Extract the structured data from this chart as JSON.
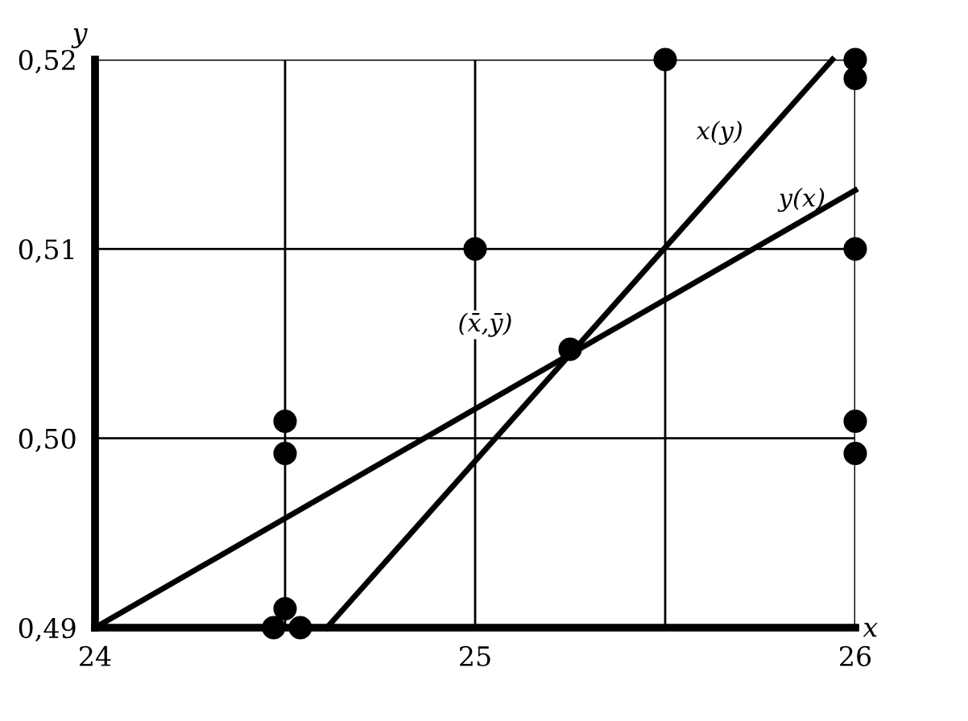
{
  "chart_data": {
    "type": "scatter",
    "xlabel": "x",
    "ylabel": "y",
    "xlim": [
      24,
      26
    ],
    "ylim": [
      0.49,
      0.52
    ],
    "xticks": [
      24,
      {
        "value": 24.5,
        "label": null
      },
      25,
      {
        "value": 25.5,
        "label": null
      },
      26
    ],
    "yticks": [
      {
        "value": 0.49,
        "label": "0,49"
      },
      {
        "value": 0.5,
        "label": "0,50"
      },
      {
        "value": 0.51,
        "label": "0,51"
      },
      {
        "value": 0.52,
        "label": "0,52"
      }
    ],
    "grid": true,
    "series": [
      {
        "marker": "circle",
        "color": "#000000",
        "x": [
          24.47,
          24.5,
          24.54,
          24.5,
          24.5,
          25,
          25.25,
          25.5,
          26,
          26,
          26,
          26,
          26
        ],
        "values": [
          0.49,
          0.491,
          0.49,
          0.4992,
          0.5009,
          0.51,
          0.5047,
          0.52,
          0.52,
          0.519,
          0.51,
          0.5009,
          0.4992
        ]
      },
      {
        "type": "line",
        "name": "x(y)",
        "color": "#000000",
        "x": [
          24.61,
          25.94
        ],
        "values": [
          0.49,
          0.52
        ]
      },
      {
        "type": "line",
        "name": "y(x)",
        "color": "#000000",
        "x": [
          24,
          26
        ],
        "values": [
          0.49,
          0.5131
        ]
      }
    ],
    "annotations": [
      {
        "text": "(x̄,ȳ)",
        "x": 25.25,
        "y": 0.5047
      }
    ]
  }
}
